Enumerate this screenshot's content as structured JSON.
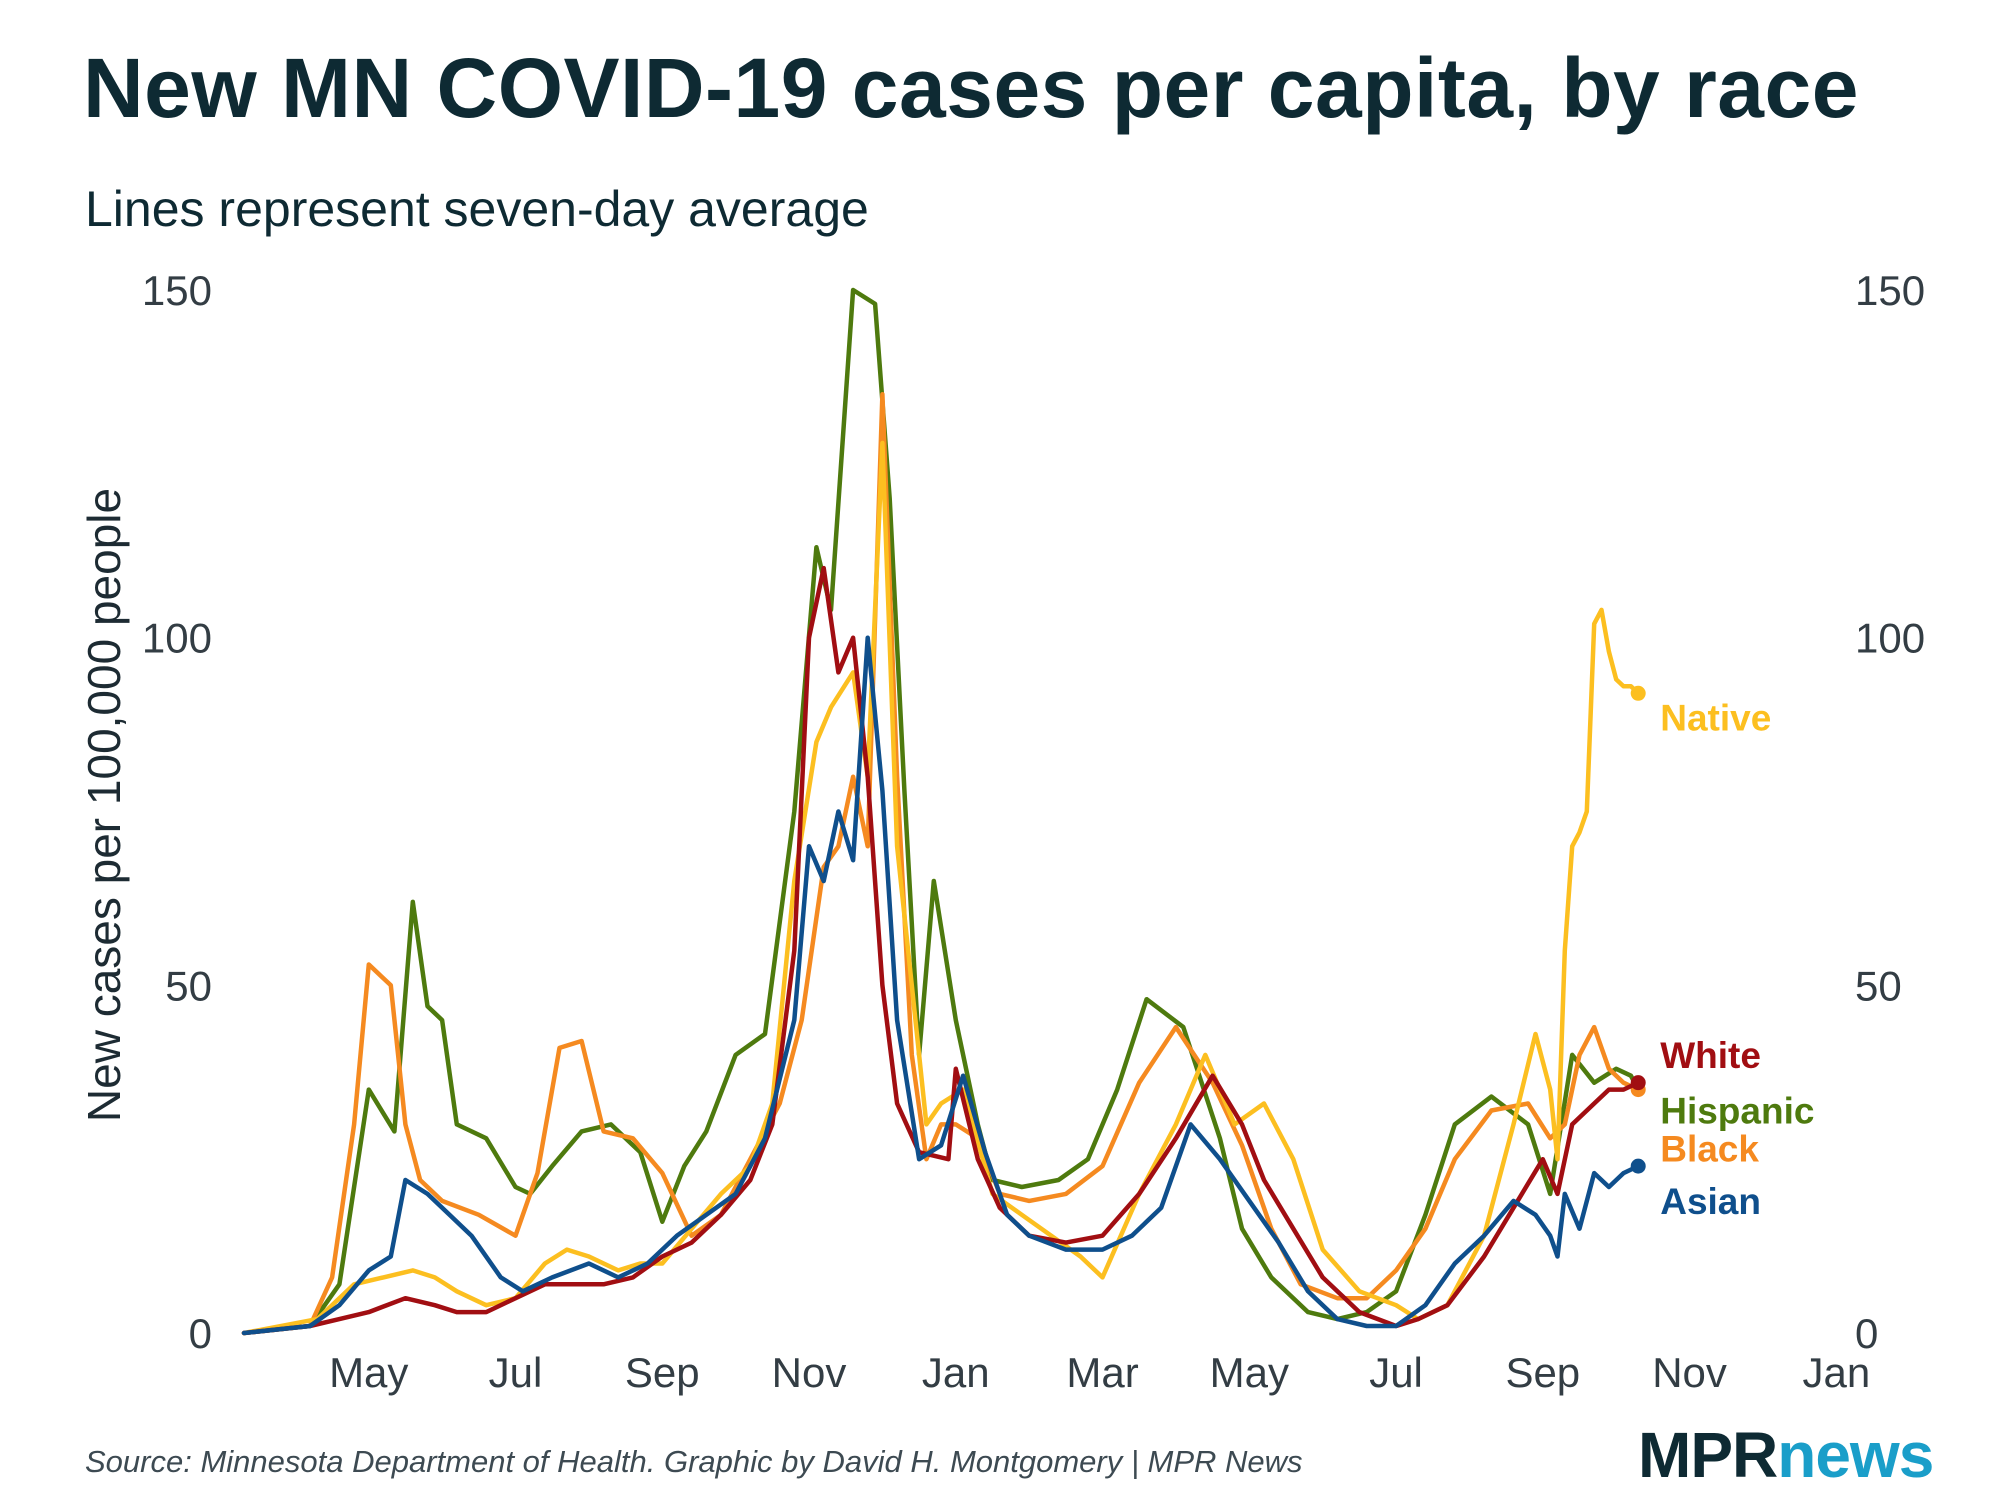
{
  "title": "New MN COVID-19 cases per capita, by race",
  "subtitle": "Lines represent seven-day average",
  "source": "Source: Minnesota Department of Health. Graphic by David H. Montgomery | MPR News",
  "logo": {
    "part1": "MPR",
    "part2": "news"
  },
  "chart_data": {
    "type": "line",
    "title": "New MN COVID-19 cases per capita, by race",
    "subtitle": "Lines represent seven-day average",
    "xlabel": "",
    "ylabel": "New cases per 100,000 people",
    "xunit": "months since Apr 1 (first year)",
    "xlim": [
      -0.85,
      21.05
    ],
    "ylim": [
      0,
      150
    ],
    "yticks": [
      0,
      50,
      100,
      150
    ],
    "xticks": [
      {
        "value": 1,
        "label": "May"
      },
      {
        "value": 3,
        "label": "Jul"
      },
      {
        "value": 5,
        "label": "Sep"
      },
      {
        "value": 7,
        "label": "Nov"
      },
      {
        "value": 9,
        "label": "Jan"
      },
      {
        "value": 11,
        "label": "Mar"
      },
      {
        "value": 13,
        "label": "May"
      },
      {
        "value": 15,
        "label": "Jul"
      },
      {
        "value": 17,
        "label": "Sep"
      },
      {
        "value": 19,
        "label": "Nov"
      },
      {
        "value": 21,
        "label": "Jan"
      }
    ],
    "grid": false,
    "series": [
      {
        "name": "Hispanic",
        "label": "Hispanic",
        "color": "#4e7a0e",
        "end_dot": false,
        "x": [
          -0.7,
          0.2,
          0.6,
          1,
          1.35,
          1.6,
          1.8,
          2,
          2.2,
          2.6,
          3,
          3.2,
          3.5,
          3.9,
          4.3,
          4.7,
          5,
          5.3,
          5.6,
          6,
          6.4,
          6.8,
          7.1,
          7.3,
          7.6,
          7.9,
          8.1,
          8.3,
          8.5,
          8.7,
          9,
          9.3,
          9.5,
          9.9,
          10.4,
          10.8,
          11.2,
          11.6,
          12.1,
          12.6,
          12.9,
          13.3,
          13.8,
          14.2,
          14.6,
          15,
          15.4,
          15.8,
          16.3,
          16.8,
          17.1,
          17.4,
          17.7,
          18,
          18.2,
          18.3
        ],
        "y": [
          0,
          1,
          7,
          35,
          29,
          62,
          47,
          45,
          30,
          28,
          21,
          20,
          24,
          29,
          30,
          26,
          16,
          24,
          29,
          40,
          43,
          75,
          113,
          104,
          150,
          148,
          120,
          78,
          40,
          65,
          45,
          30,
          22,
          21,
          22,
          25,
          35,
          48,
          44,
          28,
          15,
          8,
          3,
          2,
          3,
          6,
          17,
          30,
          34,
          30,
          20,
          40,
          36,
          38,
          37,
          35
        ]
      },
      {
        "name": "Black",
        "label": "Black",
        "color": "#f58a20",
        "end_dot": true,
        "x": [
          -0.7,
          0.2,
          0.5,
          0.8,
          1,
          1.3,
          1.5,
          1.7,
          2,
          2.5,
          3,
          3.3,
          3.6,
          3.9,
          4.2,
          4.6,
          5,
          5.4,
          5.8,
          6.2,
          6.6,
          6.9,
          7.2,
          7.4,
          7.6,
          7.8,
          8,
          8.2,
          8.4,
          8.6,
          8.8,
          9,
          9.3,
          9.6,
          10,
          10.5,
          11,
          11.5,
          12,
          12.5,
          12.9,
          13.3,
          13.7,
          14.2,
          14.6,
          15,
          15.4,
          15.8,
          16.3,
          16.8,
          17.1,
          17.3,
          17.5,
          17.7,
          17.9,
          18.1,
          18.3
        ],
        "y": [
          0,
          1,
          8,
          30,
          53,
          50,
          30,
          22,
          19,
          17,
          14,
          23,
          41,
          42,
          29,
          28,
          23,
          14,
          17,
          25,
          33,
          45,
          67,
          70,
          80,
          70,
          135,
          80,
          40,
          25,
          30,
          30,
          28,
          20,
          19,
          20,
          24,
          36,
          44,
          36,
          27,
          15,
          7,
          5,
          5,
          9,
          15,
          25,
          32,
          33,
          28,
          30,
          40,
          44,
          38,
          36,
          35
        ]
      },
      {
        "name": "Native",
        "label": "Native",
        "color": "#fcbf20",
        "end_dot": true,
        "x": [
          -0.7,
          0.3,
          0.8,
          1.2,
          1.6,
          1.9,
          2.2,
          2.6,
          3,
          3.4,
          3.7,
          4,
          4.4,
          4.7,
          5,
          5.4,
          5.8,
          6.2,
          6.5,
          6.8,
          7.1,
          7.3,
          7.6,
          7.8,
          8,
          8.2,
          8.4,
          8.6,
          8.8,
          9.1,
          9.5,
          9.9,
          10.3,
          10.7,
          11,
          11.5,
          12,
          12.4,
          12.8,
          13.2,
          13.6,
          14,
          14.5,
          15,
          15.3,
          15.7,
          16.2,
          16.6,
          16.9,
          17.1,
          17.2,
          17.3,
          17.4,
          17.5,
          17.6,
          17.7,
          17.8,
          17.9,
          18,
          18.1,
          18.2,
          18.3
        ],
        "y": [
          0,
          2,
          7,
          8,
          9,
          8,
          6,
          4,
          5,
          10,
          12,
          11,
          9,
          10,
          10,
          15,
          20,
          24,
          33,
          65,
          85,
          90,
          95,
          80,
          128,
          70,
          50,
          30,
          33,
          35,
          20,
          17,
          14,
          11,
          8,
          20,
          30,
          40,
          30,
          33,
          25,
          12,
          6,
          4,
          2,
          4,
          14,
          30,
          43,
          35,
          25,
          55,
          70,
          72,
          75,
          102,
          104,
          98,
          94,
          93,
          93,
          92
        ]
      },
      {
        "name": "White",
        "label": "White",
        "color": "#a10e12",
        "end_dot": true,
        "x": [
          -0.7,
          0.2,
          0.6,
          1,
          1.5,
          1.9,
          2.2,
          2.6,
          3,
          3.4,
          3.8,
          4.2,
          4.6,
          5,
          5.4,
          5.8,
          6.2,
          6.5,
          6.8,
          7,
          7.2,
          7.4,
          7.6,
          7.8,
          8,
          8.2,
          8.5,
          8.9,
          9,
          9.3,
          9.6,
          10,
          10.5,
          11,
          11.5,
          12,
          12.5,
          12.9,
          13.2,
          13.6,
          14,
          14.5,
          15,
          15.3,
          15.7,
          16.2,
          16.6,
          17,
          17.2,
          17.4,
          17.7,
          17.9,
          18.1,
          18.3
        ],
        "y": [
          0,
          1,
          2,
          3,
          5,
          4,
          3,
          3,
          5,
          7,
          7,
          7,
          8,
          11,
          13,
          17,
          22,
          30,
          55,
          100,
          110,
          95,
          100,
          80,
          50,
          33,
          26,
          25,
          38,
          25,
          18,
          14,
          13,
          14,
          20,
          28,
          37,
          30,
          22,
          15,
          8,
          3,
          1,
          2,
          4,
          11,
          18,
          25,
          20,
          30,
          33,
          35,
          35,
          36
        ]
      },
      {
        "name": "Asian",
        "label": "Asian",
        "color": "#0f4f8c",
        "end_dot": true,
        "x": [
          -0.7,
          0.2,
          0.6,
          1,
          1.3,
          1.5,
          1.8,
          2.1,
          2.4,
          2.8,
          3.1,
          3.5,
          4,
          4.4,
          4.8,
          5.2,
          5.6,
          6,
          6.4,
          6.8,
          7,
          7.2,
          7.4,
          7.6,
          7.8,
          8,
          8.2,
          8.5,
          8.8,
          9.1,
          9.4,
          9.7,
          10,
          10.5,
          11,
          11.4,
          11.8,
          12.2,
          12.6,
          13,
          13.4,
          13.8,
          14.2,
          14.6,
          15,
          15.4,
          15.8,
          16.2,
          16.6,
          16.9,
          17.1,
          17.2,
          17.3,
          17.5,
          17.7,
          17.9,
          18.1,
          18.3
        ],
        "y": [
          0,
          1,
          4,
          9,
          11,
          22,
          20,
          17,
          14,
          8,
          6,
          8,
          10,
          8,
          10,
          14,
          17,
          20,
          28,
          45,
          70,
          65,
          75,
          68,
          100,
          78,
          45,
          25,
          27,
          37,
          26,
          17,
          14,
          12,
          12,
          14,
          18,
          30,
          25,
          19,
          13,
          6,
          2,
          1,
          1,
          4,
          10,
          14,
          19,
          17,
          14,
          11,
          20,
          15,
          23,
          21,
          23,
          24
        ]
      }
    ],
    "annotations": [
      {
        "text": "Native",
        "series": "Native",
        "anchor_y": 88.5
      },
      {
        "text": "White",
        "series": "White",
        "anchor_y": 40
      },
      {
        "text": "Hispanic",
        "series": "Hispanic",
        "anchor_y": 32
      },
      {
        "text": "Black",
        "series": "Black",
        "anchor_y": 26.5
      },
      {
        "text": "Asian",
        "series": "Asian",
        "anchor_y": 19
      }
    ]
  }
}
